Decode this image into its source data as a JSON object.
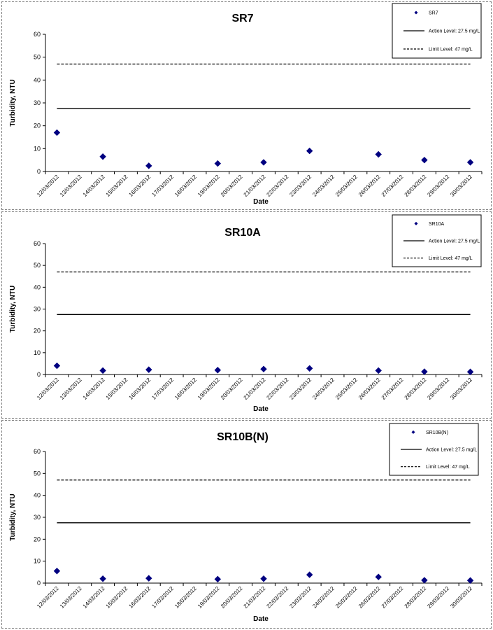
{
  "colors": {
    "marker": "#000080",
    "line": "#000000",
    "frame": "#7f7f7f"
  },
  "chart_data": [
    {
      "type": "scatter",
      "title": "SR7",
      "xlabel": "Date",
      "ylabel": "Turbidity, NTU",
      "ylim": [
        0,
        60
      ],
      "y_ticks": [
        0,
        10,
        20,
        30,
        40,
        50,
        60
      ],
      "categories": [
        "12/03/2012",
        "13/03/2012",
        "14/03/2012",
        "15/03/2012",
        "16/03/2012",
        "17/03/2012",
        "18/03/2012",
        "19/03/2012",
        "20/03/2012",
        "21/03/2012",
        "22/03/2012",
        "23/03/2012",
        "24/03/2012",
        "25/03/2012",
        "26/03/2012",
        "27/03/2012",
        "28/03/2012",
        "29/03/2012",
        "30/03/2012"
      ],
      "series": [
        {
          "name": "SR7",
          "kind": "marker",
          "x": [
            "12/03/2012",
            "14/03/2012",
            "16/03/2012",
            "19/03/2012",
            "21/03/2012",
            "23/03/2012",
            "26/03/2012",
            "28/03/2012",
            "30/03/2012"
          ],
          "values": [
            17,
            6.5,
            2.5,
            3.5,
            4,
            9,
            7.5,
            5,
            4
          ]
        },
        {
          "name": "Action Level: 27.5 mg/L",
          "kind": "line",
          "value": 27.5,
          "dashed": false
        },
        {
          "name": "Limit Level: 47 mg/L",
          "kind": "line",
          "value": 47,
          "dashed": true
        }
      ],
      "legend": "top-right",
      "grid": false
    },
    {
      "type": "scatter",
      "title": "SR10A",
      "xlabel": "Date",
      "ylabel": "Turbidity, NTU",
      "ylim": [
        0,
        60
      ],
      "y_ticks": [
        0,
        10,
        20,
        30,
        40,
        50,
        60
      ],
      "categories": [
        "12/03/2012",
        "13/03/2012",
        "14/03/2012",
        "15/03/2012",
        "16/03/2012",
        "17/03/2012",
        "18/03/2012",
        "19/03/2012",
        "20/03/2012",
        "21/03/2012",
        "22/03/2012",
        "23/03/2012",
        "24/03/2012",
        "25/03/2012",
        "26/03/2012",
        "27/03/2012",
        "28/03/2012",
        "29/03/2012",
        "30/03/2012"
      ],
      "series": [
        {
          "name": "SR10A",
          "kind": "marker",
          "x": [
            "12/03/2012",
            "14/03/2012",
            "16/03/2012",
            "19/03/2012",
            "21/03/2012",
            "23/03/2012",
            "26/03/2012",
            "28/03/2012",
            "30/03/2012"
          ],
          "values": [
            4,
            1.8,
            2.2,
            2,
            2.5,
            2.8,
            1.8,
            1.3,
            1.2
          ]
        },
        {
          "name": "Action Level: 27.5 mg/L",
          "kind": "line",
          "value": 27.5,
          "dashed": false
        },
        {
          "name": "Limit Level: 47 mg/L",
          "kind": "line",
          "value": 47,
          "dashed": true
        }
      ],
      "legend": "top-right",
      "grid": false
    },
    {
      "type": "scatter",
      "title": "SR10B(N)",
      "xlabel": "Date",
      "ylabel": "Turbidity, NTU",
      "ylim": [
        0,
        60
      ],
      "y_ticks": [
        0,
        10,
        20,
        30,
        40,
        50,
        60
      ],
      "categories": [
        "12/03/2012",
        "13/03/2012",
        "14/03/2012",
        "15/03/2012",
        "16/03/2012",
        "17/03/2012",
        "18/03/2012",
        "19/03/2012",
        "20/03/2012",
        "21/03/2012",
        "22/03/2012",
        "23/03/2012",
        "24/03/2012",
        "25/03/2012",
        "26/03/2012",
        "27/03/2012",
        "28/03/2012",
        "29/03/2012",
        "30/03/2012"
      ],
      "series": [
        {
          "name": "SR10B(N)",
          "kind": "marker",
          "x": [
            "12/03/2012",
            "14/03/2012",
            "16/03/2012",
            "19/03/2012",
            "21/03/2012",
            "23/03/2012",
            "26/03/2012",
            "28/03/2012",
            "30/03/2012"
          ],
          "values": [
            5.5,
            2,
            2.2,
            1.8,
            2,
            3.8,
            2.8,
            1.3,
            1.2
          ]
        },
        {
          "name": "Action Level: 27.5 mg/L",
          "kind": "line",
          "value": 27.5,
          "dashed": false
        },
        {
          "name": "Limit Level: 47 mg/L",
          "kind": "line",
          "value": 47,
          "dashed": true
        }
      ],
      "legend": "top-right",
      "grid": false
    }
  ]
}
